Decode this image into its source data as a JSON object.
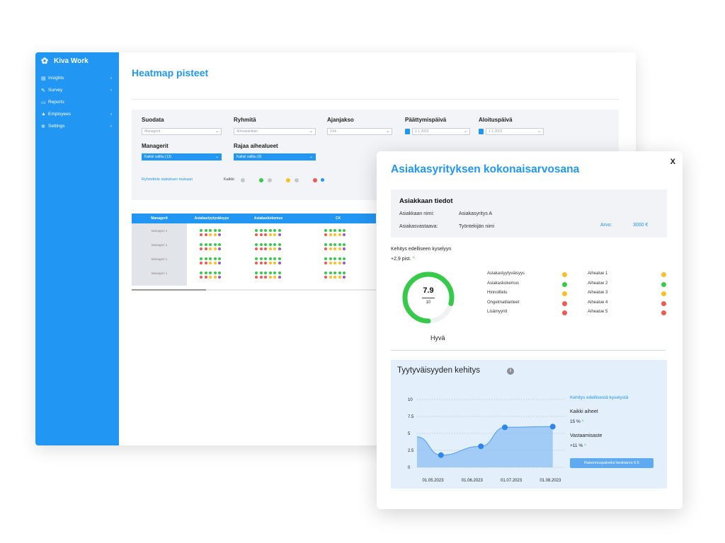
{
  "app": {
    "brand": "Kiva Work",
    "nav": [
      {
        "label": "Insights",
        "icon": "chart-icon",
        "chevron": true
      },
      {
        "label": "Survey",
        "icon": "pencil-icon",
        "chevron": true
      },
      {
        "label": "Reports",
        "icon": "document-icon",
        "chevron": false
      },
      {
        "label": "Employees",
        "icon": "person-icon",
        "chevron": true
      },
      {
        "label": "Settings",
        "icon": "gear-icon",
        "chevron": true
      }
    ],
    "page_title": "Heatmap pisteet",
    "filters": {
      "suodata": {
        "label": "Suodata",
        "value": "Managerit"
      },
      "ryhmita": {
        "label": "Ryhmitä",
        "value": "Aihealueittain"
      },
      "ajanjakso": {
        "label": "Ajanjakso",
        "value": "3 kk"
      },
      "paattymis": {
        "label": "Päättymispäivä",
        "value": "1.1.2023"
      },
      "aloitus": {
        "label": "Aloituspäivä",
        "value": "1.1.2023"
      },
      "managerit": {
        "label": "Managerit",
        "value": "Kaikki valittu (13)"
      },
      "rajaa": {
        "label": "Rajaa aihealueet",
        "value": "Kaikki valittu (9)"
      },
      "group_status": "Ryhmittele statuksen mukaan",
      "kaikki": "Kaikki"
    },
    "table": {
      "headers": [
        "Managerit",
        "Asiakastyytyväisyys",
        "Asiakaskokemus",
        "CX"
      ],
      "rows": [
        "Manageri 1",
        "Manageri 1",
        "Manageri 1",
        "Manageri 1"
      ]
    }
  },
  "popup": {
    "title": "Asiakasyrityksen kokonaisarvosana",
    "close": "X",
    "info": {
      "heading": "Asiakkaan tiedot",
      "name_label": "Asiakkaan nimi:",
      "name_value": "Asiakasyritys A",
      "contact_label": "Asiakasvastaava:",
      "contact_value": "Työntekijän nimi",
      "value_label": "Arvo:",
      "value_value": "3000 €"
    },
    "change_label": "Kehitys edelliseen kyselyyn",
    "change_value": "+2,9 pist.",
    "score": {
      "value": "7.9",
      "max": "10",
      "fraction": 0.79,
      "label": "Hyvä"
    },
    "metrics_left": [
      {
        "label": "Asiakastyytyväisyys",
        "color": "#f6c026"
      },
      {
        "label": "Asiakaskokemus",
        "color": "#37c94a"
      },
      {
        "label": "Hinnoittelu",
        "color": "#f6c026"
      },
      {
        "label": "Ongelmatilanteet",
        "color": "#ee5a52"
      },
      {
        "label": "Lisämyynti",
        "color": "#ee5a52"
      }
    ],
    "metrics_right": [
      {
        "label": "Aihealue 1",
        "color": "#f6c026"
      },
      {
        "label": "Aihealue 2",
        "color": "#37c94a"
      },
      {
        "label": "Aihealue 3",
        "color": "#f6c026"
      },
      {
        "label": "Aihealue 4",
        "color": "#ee5a52"
      },
      {
        "label": "Aihealue 5",
        "color": "#ee5a52"
      }
    ],
    "trend": {
      "title": "Tyytyväisyyden kehitys",
      "legend_link": "Kehitys edellisestä kyselystä",
      "all_label": "Kaikki aiheet",
      "all_value": "15 %",
      "resp_label": "Vastaamisaste",
      "resp_value": "+11 %",
      "button": "Rakennuspalvelut keskiarvo 6.5"
    }
  },
  "colors": {
    "accent": "#2196f3",
    "green": "#37c94a",
    "yellow": "#f6c026",
    "red": "#ee5a52",
    "purple": "#9b59b6"
  },
  "chart_data": {
    "type": "area",
    "title": "Tyytyväisyyden kehitys",
    "x": [
      "01.05.2023",
      "01.06.2023",
      "01.07.2023",
      "01.08.2023"
    ],
    "yticks": [
      "10",
      "7.5",
      "5",
      "2.5",
      "0"
    ],
    "ylim": [
      0,
      10
    ],
    "series": [
      {
        "points": [
          [
            0,
            4.5
          ],
          [
            0.6,
            1.8
          ],
          [
            1.6,
            3.1
          ],
          [
            2.2,
            5.9
          ],
          [
            3.4,
            6.0
          ]
        ],
        "markers": [
          [
            0.6,
            1.8
          ],
          [
            1.6,
            3.1
          ],
          [
            2.2,
            5.9
          ],
          [
            3.4,
            6.0
          ]
        ]
      }
    ],
    "grid": true
  }
}
